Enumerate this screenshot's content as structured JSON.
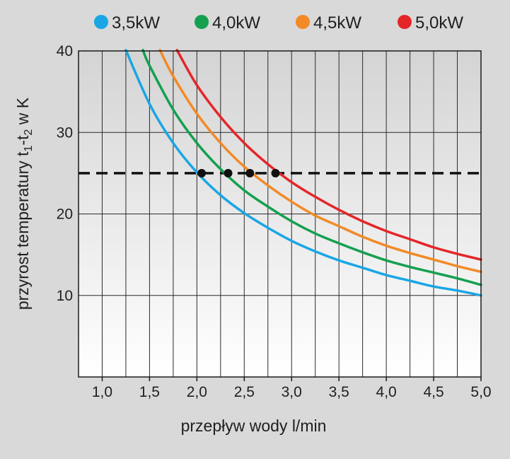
{
  "chart_data": {
    "type": "line",
    "title": "",
    "xlabel": "przepływ wody l/min",
    "ylabel_parts": [
      "przyrost temperatury t",
      "1",
      "-t",
      "2",
      " w K"
    ],
    "xlim": [
      0.75,
      5.0
    ],
    "ylim": [
      0,
      40
    ],
    "x_ticks": [
      1.0,
      1.5,
      2.0,
      2.5,
      3.0,
      3.5,
      4.0,
      4.5,
      5.0
    ],
    "x_tick_labels": [
      "1,0",
      "1,5",
      "2,0",
      "2,5",
      "3,0",
      "3,5",
      "4,0",
      "4,5",
      "5,0"
    ],
    "x_grid_step": 0.25,
    "y_ticks": [
      10,
      20,
      30,
      40
    ],
    "y_tick_labels": [
      "10",
      "20",
      "30",
      "40"
    ],
    "grid": true,
    "legend_position": "top",
    "reference_line": {
      "y": 25,
      "style": "dashed",
      "color": "#111111"
    },
    "series": [
      {
        "name": "3,5kW",
        "color": "#1aa6e4",
        "power_kw": 3.5,
        "x": [
          1.25,
          1.5,
          1.75,
          2.0,
          2.25,
          2.5,
          2.75,
          3.0,
          3.25,
          3.5,
          3.75,
          4.0,
          4.25,
          4.5,
          4.75,
          5.0
        ],
        "y": [
          40.1,
          33.5,
          28.7,
          25.1,
          22.3,
          20.1,
          18.3,
          16.7,
          15.4,
          14.3,
          13.4,
          12.5,
          11.8,
          11.1,
          10.6,
          10.0
        ]
      },
      {
        "name": "4,0kW",
        "color": "#14a04f",
        "power_kw": 4.0,
        "x": [
          1.43,
          1.5,
          1.75,
          2.0,
          2.25,
          2.5,
          2.75,
          3.0,
          3.25,
          3.5,
          3.75,
          4.0,
          4.25,
          4.5,
          4.75,
          5.0
        ],
        "y": [
          40.1,
          38.2,
          32.8,
          28.7,
          25.5,
          22.9,
          20.9,
          19.1,
          17.6,
          16.4,
          15.3,
          14.3,
          13.5,
          12.8,
          12.1,
          11.3
        ]
      },
      {
        "name": "4,5kW",
        "color": "#f28a27",
        "power_kw": 4.5,
        "x": [
          1.61,
          1.75,
          2.0,
          2.25,
          2.5,
          2.75,
          3.0,
          3.25,
          3.5,
          3.75,
          4.0,
          4.25,
          4.5,
          4.75,
          5.0
        ],
        "y": [
          40.1,
          36.9,
          32.3,
          28.7,
          25.8,
          23.5,
          21.5,
          19.8,
          18.5,
          17.2,
          16.1,
          15.2,
          14.4,
          13.6,
          12.9
        ]
      },
      {
        "name": "5,0kW",
        "color": "#e52629",
        "power_kw": 5.0,
        "x": [
          1.79,
          2.0,
          2.25,
          2.5,
          2.75,
          3.0,
          3.25,
          3.5,
          3.75,
          4.0,
          4.25,
          4.5,
          4.75,
          5.0
        ],
        "y": [
          40.1,
          35.8,
          31.9,
          28.7,
          26.1,
          23.9,
          22.1,
          20.5,
          19.1,
          17.9,
          16.9,
          15.9,
          15.1,
          14.4
        ]
      }
    ],
    "markers": [
      {
        "x": 2.05,
        "y": 25
      },
      {
        "x": 2.33,
        "y": 25
      },
      {
        "x": 2.56,
        "y": 25
      },
      {
        "x": 2.83,
        "y": 25
      }
    ]
  }
}
